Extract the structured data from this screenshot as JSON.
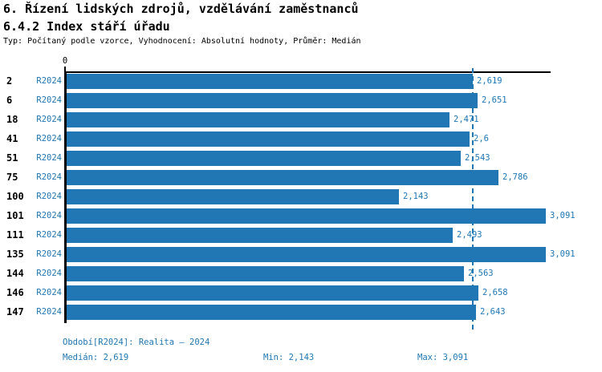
{
  "header": {
    "title": "6. Řízení lidských zdrojů, vzdělávání zaměstnanců",
    "subtitle": "6.4.2 Index stáří úřadu",
    "meta": "Typ: Počítaný podle vzorce, Vyhodnocení: Absolutní hodnoty, Průměr: Medián"
  },
  "chart_data": {
    "type": "bar",
    "orientation": "horizontal",
    "title": "6.4.2 Index stáří úřadu",
    "axis": {
      "zero_label": "0",
      "xlim": [
        0,
        3.12
      ],
      "grid": false
    },
    "series_label": "R2024",
    "categories": [
      "2",
      "6",
      "18",
      "41",
      "51",
      "75",
      "100",
      "101",
      "111",
      "135",
      "144",
      "146",
      "147"
    ],
    "series": [
      {
        "name": "R2024",
        "values": [
          2.619,
          2.651,
          2.471,
          2.6,
          2.543,
          2.786,
          2.143,
          3.091,
          2.493,
          3.091,
          2.563,
          2.658,
          2.643
        ],
        "value_labels": [
          "2,619",
          "2,651",
          "2,471",
          "2,6",
          "2,543",
          "2,786",
          "2,143",
          "3,091",
          "2,493",
          "3,091",
          "2,563",
          "2,658",
          "2,643"
        ]
      }
    ],
    "median_numeric": 2.619,
    "min_numeric": 2.143,
    "max_numeric": 3.091,
    "bar_color": "#2077b4",
    "median_line_color": "#2077b4"
  },
  "footer": {
    "period": "Období[R2024]: Realita – 2024",
    "median": "Medián: 2,619",
    "min": "Min: 2,143",
    "max": "Max: 3,091"
  }
}
